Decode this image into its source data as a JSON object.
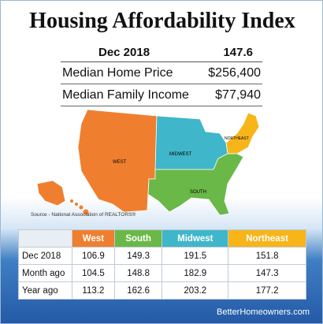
{
  "title": "Housing Affordability Index",
  "summary": {
    "period": "Dec 2018",
    "index": "147.6",
    "rows": [
      {
        "label": "Median Home Price",
        "value": "$256,400"
      },
      {
        "label": "Median Family Income",
        "value": "$77,940"
      }
    ]
  },
  "map": {
    "regions": [
      {
        "name": "WEST",
        "color": "#ef7f2f"
      },
      {
        "name": "MIDWEST",
        "color": "#3fb6c9"
      },
      {
        "name": "NORTHEAST",
        "color": "#f7b51a"
      },
      {
        "name": "SOUTH",
        "color": "#6ab848"
      }
    ]
  },
  "source": "Source - National Association of REALTORS®",
  "table": {
    "headers": [
      {
        "label": "West",
        "color": "#ef7f2f"
      },
      {
        "label": "South",
        "color": "#6ab848"
      },
      {
        "label": "Midwest",
        "color": "#3fb6c9"
      },
      {
        "label": "Northeast",
        "color": "#f7b51a"
      }
    ],
    "rows": [
      {
        "label": "Dec 2018",
        "values": [
          "106.9",
          "149.3",
          "191.5",
          "151.8"
        ]
      },
      {
        "label": "Month ago",
        "values": [
          "104.5",
          "148.8",
          "182.9",
          "147.3"
        ]
      },
      {
        "label": "Year ago",
        "values": [
          "113.2",
          "162.6",
          "203.2",
          "177.2"
        ]
      }
    ]
  },
  "footer": "BetterHomeowners.com"
}
